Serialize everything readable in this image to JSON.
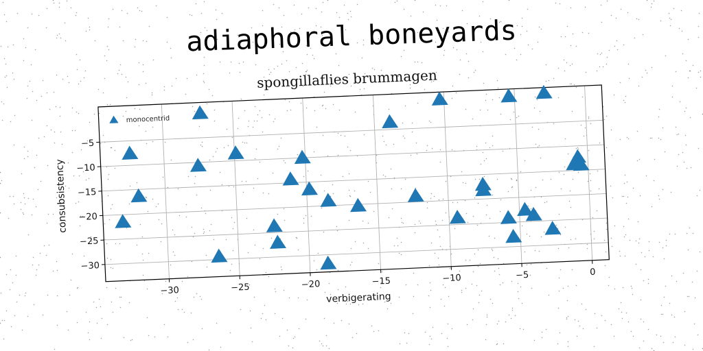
{
  "figure_title": "adiaphoral boneyards",
  "chart_data": {
    "type": "scatter",
    "title": "spongillaflies brummagen",
    "xlabel": "verbigerating",
    "ylabel": "consubsistency",
    "xlim": [
      -34.5,
      1.2
    ],
    "ylim": [
      -33.5,
      2.2
    ],
    "xticks": [
      -30,
      -25,
      -20,
      -15,
      -10,
      -5,
      0
    ],
    "yticks": [
      -5,
      -10,
      -15,
      -20,
      -25,
      -30
    ],
    "grid": true,
    "legend_position": "top-left",
    "series": [
      {
        "name": "monocentrid",
        "color": "#1f77b4",
        "marker": "triangle",
        "points": [
          [
            -27.3,
            0.0
          ],
          [
            -10.3,
            0.7
          ],
          [
            -5.4,
            0.7
          ],
          [
            -2.9,
            1.1
          ],
          [
            -13.9,
            -3.5
          ],
          [
            -32.4,
            -7.6
          ],
          [
            -24.9,
            -8.5
          ],
          [
            -27.6,
            -10.7
          ],
          [
            -20.2,
            -10.0
          ],
          [
            -31.9,
            -16.4
          ],
          [
            -21.1,
            -14.3
          ],
          [
            -19.8,
            -16.5
          ],
          [
            -18.5,
            -19.0
          ],
          [
            -16.4,
            -20.3
          ],
          [
            -12.3,
            -18.8
          ],
          [
            -33.1,
            -21.5
          ],
          [
            -22.4,
            -23.7
          ],
          [
            -22.2,
            -27.1
          ],
          [
            -26.4,
            -29.4
          ],
          [
            -18.7,
            -31.8
          ],
          [
            -9.4,
            -23.6
          ],
          [
            -7.5,
            -17.1
          ],
          [
            -7.5,
            -18.2
          ],
          [
            -5.8,
            -24.1
          ],
          [
            -5.5,
            -28.0
          ],
          [
            -4.6,
            -22.6
          ],
          [
            -4.0,
            -23.7
          ],
          [
            -2.7,
            -26.7
          ],
          [
            -1.0,
            -13.7
          ],
          [
            -0.7,
            -12.3
          ],
          [
            -0.5,
            -13.9
          ]
        ]
      }
    ]
  }
}
